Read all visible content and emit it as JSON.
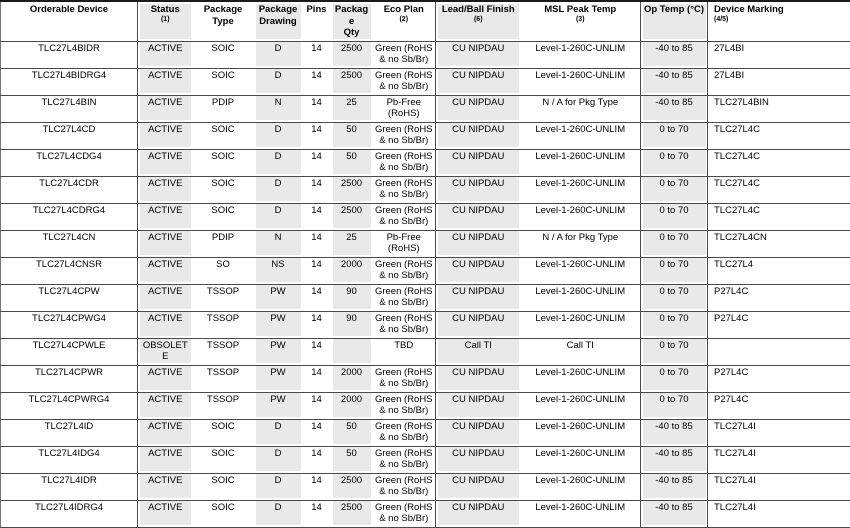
{
  "document": {
    "kind": "package-option-addendum-table"
  },
  "colors": {
    "column_shading": "#e9e9e9",
    "rule": "#4a4a4a",
    "text": "#000000",
    "background": "#ffffff"
  },
  "table": {
    "column_keys": [
      "orderable-device",
      "status",
      "package-type",
      "package-drawing",
      "pins",
      "package-qty",
      "eco-plan",
      "lead-ball-finish",
      "msl-peak-temp",
      "op-temp",
      "device-marking"
    ],
    "columns": [
      {
        "label": "Orderable Device",
        "ref": ""
      },
      {
        "label": "Status",
        "ref": "(1)"
      },
      {
        "label": "Package Type",
        "ref": ""
      },
      {
        "label": "Package\nDrawing",
        "ref": ""
      },
      {
        "label": "Pins",
        "ref": ""
      },
      {
        "label": "Package\nQty",
        "ref": ""
      },
      {
        "label": "Eco Plan",
        "ref": "(2)"
      },
      {
        "label": "Lead/Ball Finish",
        "ref": "(6)"
      },
      {
        "label": "MSL Peak Temp",
        "ref": "(3)"
      },
      {
        "label": "Op Temp (°C)",
        "ref": ""
      },
      {
        "label": "Device Marking",
        "ref": "(4/5)"
      }
    ],
    "rows": [
      [
        "TLC27L4BIDR",
        "ACTIVE",
        "SOIC",
        "D",
        "14",
        "2500",
        "Green (RoHS & no Sb/Br)",
        "CU NIPDAU",
        "Level-1-260C-UNLIM",
        "-40 to 85",
        "27L4BI"
      ],
      [
        "TLC27L4BIDRG4",
        "ACTIVE",
        "SOIC",
        "D",
        "14",
        "2500",
        "Green (RoHS & no Sb/Br)",
        "CU NIPDAU",
        "Level-1-260C-UNLIM",
        "-40 to 85",
        "27L4BI"
      ],
      [
        "TLC27L4BIN",
        "ACTIVE",
        "PDIP",
        "N",
        "14",
        "25",
        "Pb-Free (RoHS)",
        "CU NIPDAU",
        "N / A for Pkg Type",
        "-40 to 85",
        "TLC27L4BIN"
      ],
      [
        "TLC27L4CD",
        "ACTIVE",
        "SOIC",
        "D",
        "14",
        "50",
        "Green (RoHS & no Sb/Br)",
        "CU NIPDAU",
        "Level-1-260C-UNLIM",
        "0 to 70",
        "TLC27L4C"
      ],
      [
        "TLC27L4CDG4",
        "ACTIVE",
        "SOIC",
        "D",
        "14",
        "50",
        "Green (RoHS & no Sb/Br)",
        "CU NIPDAU",
        "Level-1-260C-UNLIM",
        "0 to 70",
        "TLC27L4C"
      ],
      [
        "TLC27L4CDR",
        "ACTIVE",
        "SOIC",
        "D",
        "14",
        "2500",
        "Green (RoHS & no Sb/Br)",
        "CU NIPDAU",
        "Level-1-260C-UNLIM",
        "0 to 70",
        "TLC27L4C"
      ],
      [
        "TLC27L4CDRG4",
        "ACTIVE",
        "SOIC",
        "D",
        "14",
        "2500",
        "Green (RoHS & no Sb/Br)",
        "CU NIPDAU",
        "Level-1-260C-UNLIM",
        "0 to 70",
        "TLC27L4C"
      ],
      [
        "TLC27L4CN",
        "ACTIVE",
        "PDIP",
        "N",
        "14",
        "25",
        "Pb-Free (RoHS)",
        "CU NIPDAU",
        "N / A for Pkg Type",
        "0 to 70",
        "TLC27L4CN"
      ],
      [
        "TLC27L4CNSR",
        "ACTIVE",
        "SO",
        "NS",
        "14",
        "2000",
        "Green (RoHS & no Sb/Br)",
        "CU NIPDAU",
        "Level-1-260C-UNLIM",
        "0 to 70",
        "TLC27L4"
      ],
      [
        "TLC27L4CPW",
        "ACTIVE",
        "TSSOP",
        "PW",
        "14",
        "90",
        "Green (RoHS & no Sb/Br)",
        "CU NIPDAU",
        "Level-1-260C-UNLIM",
        "0 to 70",
        "P27L4C"
      ],
      [
        "TLC27L4CPWG4",
        "ACTIVE",
        "TSSOP",
        "PW",
        "14",
        "90",
        "Green (RoHS & no Sb/Br)",
        "CU NIPDAU",
        "Level-1-260C-UNLIM",
        "0 to 70",
        "P27L4C"
      ],
      [
        "TLC27L4CPWLE",
        "OBSOLETE",
        "TSSOP",
        "PW",
        "14",
        "",
        "TBD",
        "Call TI",
        "Call TI",
        "0 to 70",
        ""
      ],
      [
        "TLC27L4CPWR",
        "ACTIVE",
        "TSSOP",
        "PW",
        "14",
        "2000",
        "Green (RoHS & no Sb/Br)",
        "CU NIPDAU",
        "Level-1-260C-UNLIM",
        "0 to 70",
        "P27L4C"
      ],
      [
        "TLC27L4CPWRG4",
        "ACTIVE",
        "TSSOP",
        "PW",
        "14",
        "2000",
        "Green (RoHS & no Sb/Br)",
        "CU NIPDAU",
        "Level-1-260C-UNLIM",
        "0 to 70",
        "P27L4C"
      ],
      [
        "TLC27L4ID",
        "ACTIVE",
        "SOIC",
        "D",
        "14",
        "50",
        "Green (RoHS & no Sb/Br)",
        "CU NIPDAU",
        "Level-1-260C-UNLIM",
        "-40 to 85",
        "TLC27L4I"
      ],
      [
        "TLC27L4IDG4",
        "ACTIVE",
        "SOIC",
        "D",
        "14",
        "50",
        "Green (RoHS & no Sb/Br)",
        "CU NIPDAU",
        "Level-1-260C-UNLIM",
        "-40 to 85",
        "TLC27L4I"
      ],
      [
        "TLC27L4IDR",
        "ACTIVE",
        "SOIC",
        "D",
        "14",
        "2500",
        "Green (RoHS & no Sb/Br)",
        "CU NIPDAU",
        "Level-1-260C-UNLIM",
        "-40 to 85",
        "TLC27L4I"
      ],
      [
        "TLC27L4IDRG4",
        "ACTIVE",
        "SOIC",
        "D",
        "14",
        "2500",
        "Green (RoHS & no Sb/Br)",
        "CU NIPDAU",
        "Level-1-260C-UNLIM",
        "-40 to 85",
        "TLC27L4I"
      ]
    ]
  }
}
